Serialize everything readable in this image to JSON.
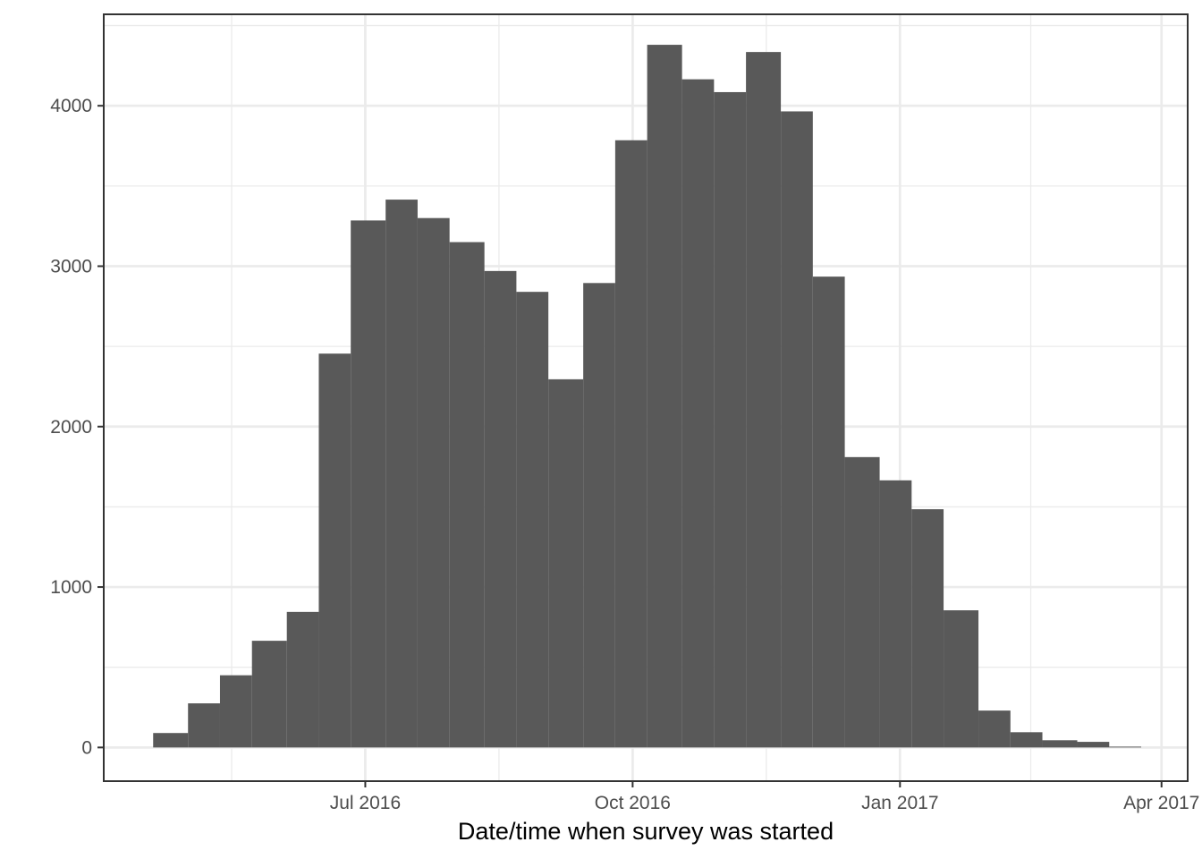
{
  "chart_data": {
    "type": "bar",
    "subtype": "histogram",
    "title": "",
    "xlabel": "Date/time when survey was started",
    "ylabel": "",
    "grid": true,
    "bar_color": "#595959",
    "xlim": [
      "2016-04-02",
      "2017-04-10"
    ],
    "ylim": [
      -210,
      4570
    ],
    "x_ticks": [
      {
        "date": "2016-07-01",
        "label": "Jul 2016"
      },
      {
        "date": "2016-10-01",
        "label": "Oct 2016"
      },
      {
        "date": "2017-01-01",
        "label": "Jan 2017"
      },
      {
        "date": "2017-04-01",
        "label": "Apr 2017"
      }
    ],
    "x_minor_ticks": [
      "2016-05-16",
      "2016-08-16",
      "2016-11-16",
      "2017-02-15"
    ],
    "y_ticks": [
      0,
      1000,
      2000,
      3000,
      4000
    ],
    "y_minor_ticks": [
      500,
      1500,
      2500,
      3500,
      4500
    ],
    "bins": [
      {
        "start": "2016-04-19",
        "end": "2016-05-01",
        "count": 90
      },
      {
        "start": "2016-05-01",
        "end": "2016-05-12",
        "count": 275
      },
      {
        "start": "2016-05-12",
        "end": "2016-05-23",
        "count": 450
      },
      {
        "start": "2016-05-23",
        "end": "2016-06-04",
        "count": 665
      },
      {
        "start": "2016-06-04",
        "end": "2016-06-15",
        "count": 845
      },
      {
        "start": "2016-06-15",
        "end": "2016-06-26",
        "count": 2455
      },
      {
        "start": "2016-06-26",
        "end": "2016-07-08",
        "count": 3285
      },
      {
        "start": "2016-07-08",
        "end": "2016-07-19",
        "count": 3415
      },
      {
        "start": "2016-07-19",
        "end": "2016-07-30",
        "count": 3300
      },
      {
        "start": "2016-07-30",
        "end": "2016-08-11",
        "count": 3150
      },
      {
        "start": "2016-08-11",
        "end": "2016-08-22",
        "count": 2970
      },
      {
        "start": "2016-08-22",
        "end": "2016-09-02",
        "count": 2840
      },
      {
        "start": "2016-09-02",
        "end": "2016-09-14",
        "count": 2295
      },
      {
        "start": "2016-09-14",
        "end": "2016-09-25",
        "count": 2895
      },
      {
        "start": "2016-09-25",
        "end": "2016-10-06",
        "count": 3785
      },
      {
        "start": "2016-10-06",
        "end": "2016-10-18",
        "count": 4380
      },
      {
        "start": "2016-10-18",
        "end": "2016-10-29",
        "count": 4165
      },
      {
        "start": "2016-10-29",
        "end": "2016-11-09",
        "count": 4085
      },
      {
        "start": "2016-11-09",
        "end": "2016-11-21",
        "count": 4335
      },
      {
        "start": "2016-11-21",
        "end": "2016-12-02",
        "count": 3965
      },
      {
        "start": "2016-12-02",
        "end": "2016-12-13",
        "count": 2935
      },
      {
        "start": "2016-12-13",
        "end": "2016-12-25",
        "count": 1810
      },
      {
        "start": "2016-12-25",
        "end": "2017-01-05",
        "count": 1665
      },
      {
        "start": "2017-01-05",
        "end": "2017-01-16",
        "count": 1485
      },
      {
        "start": "2017-01-16",
        "end": "2017-01-28",
        "count": 855
      },
      {
        "start": "2017-01-28",
        "end": "2017-02-08",
        "count": 230
      },
      {
        "start": "2017-02-08",
        "end": "2017-02-19",
        "count": 95
      },
      {
        "start": "2017-02-19",
        "end": "2017-03-03",
        "count": 45
      },
      {
        "start": "2017-03-03",
        "end": "2017-03-14",
        "count": 35
      },
      {
        "start": "2017-03-14",
        "end": "2017-03-25",
        "count": 5
      }
    ]
  }
}
